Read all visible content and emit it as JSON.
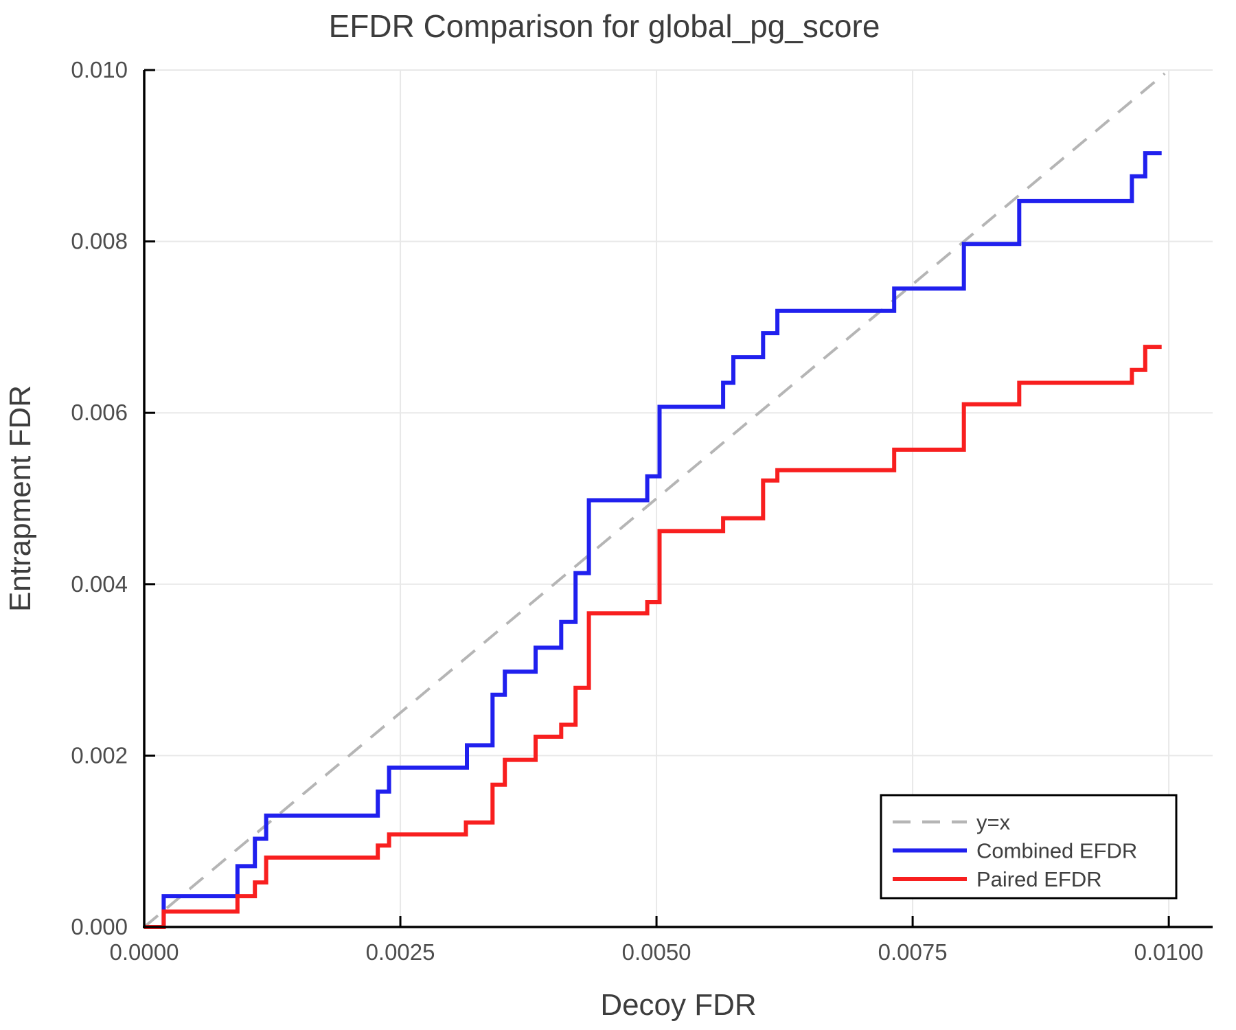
{
  "chart_data": {
    "type": "line",
    "title": "EFDR Comparison for global_pg_score",
    "xlabel": "Decoy FDR",
    "ylabel": "Entrapment FDR",
    "xlim": [
      0.0,
      0.010428
    ],
    "ylim": [
      0.0,
      0.01
    ],
    "grid": true,
    "legend_position": "bottom-right",
    "x_ticks": {
      "values": [
        0.0,
        0.0025,
        0.005,
        0.0075,
        0.01
      ],
      "labels": [
        "0.0000",
        "0.0025",
        "0.0050",
        "0.0075",
        "0.0100"
      ]
    },
    "y_ticks": {
      "values": [
        0.0,
        0.002,
        0.004,
        0.006,
        0.008,
        0.01
      ],
      "labels": [
        "0.000",
        "0.002",
        "0.004",
        "0.006",
        "0.008",
        "0.010"
      ]
    },
    "style": {
      "grid_color": "#e8e8e8",
      "spine_color": "#000000",
      "tick_color": "#000000",
      "tick_label_color": "#4d4d4d",
      "axis_label_color": "#3d3d3d",
      "title_color": "#3c3c3c",
      "legend_border_color": "#000000",
      "legend_bg_color": "#ffffff",
      "legend_text_color": "#3f3f3f"
    },
    "series": [
      {
        "name": "y=x",
        "color": "#b5b5b5",
        "dash": "26 17",
        "width": 4,
        "step": false,
        "points": [
          [
            0.0,
            0.0
          ],
          [
            0.00996,
            0.00996
          ]
        ]
      },
      {
        "name": "Combined EFDR",
        "color": "#2020ee",
        "dash": "",
        "width": 6,
        "step": true,
        "points": [
          [
            0.0,
            0.0
          ],
          [
            0.00019,
            0.00036
          ],
          [
            0.00091,
            0.00071
          ],
          [
            0.00108,
            0.00103
          ],
          [
            0.00119,
            0.0013
          ],
          [
            0.00228,
            0.00158
          ],
          [
            0.00239,
            0.00186
          ],
          [
            0.00315,
            0.00212
          ],
          [
            0.0034,
            0.00271
          ],
          [
            0.00352,
            0.00298
          ],
          [
            0.00382,
            0.00326
          ],
          [
            0.00407,
            0.00356
          ],
          [
            0.00421,
            0.00413
          ],
          [
            0.00434,
            0.00498
          ],
          [
            0.00491,
            0.00526
          ],
          [
            0.00503,
            0.00607
          ],
          [
            0.00565,
            0.00635
          ],
          [
            0.00575,
            0.00665
          ],
          [
            0.00604,
            0.00693
          ],
          [
            0.00618,
            0.00719
          ],
          [
            0.00732,
            0.00745
          ],
          [
            0.008,
            0.00797
          ],
          [
            0.00854,
            0.00847
          ],
          [
            0.00964,
            0.00876
          ],
          [
            0.00977,
            0.00903
          ],
          [
            0.00993,
            0.00903
          ]
        ]
      },
      {
        "name": "Paired EFDR",
        "color": "#f81f1f",
        "dash": "",
        "width": 6,
        "step": true,
        "points": [
          [
            0.0,
            0.0
          ],
          [
            0.00019,
            0.00018
          ],
          [
            0.00091,
            0.00036
          ],
          [
            0.00108,
            0.00052
          ],
          [
            0.00119,
            0.00081
          ],
          [
            0.00228,
            0.00095
          ],
          [
            0.00239,
            0.00108
          ],
          [
            0.00314,
            0.00122
          ],
          [
            0.0034,
            0.00166
          ],
          [
            0.00352,
            0.00195
          ],
          [
            0.00382,
            0.00222
          ],
          [
            0.00407,
            0.00236
          ],
          [
            0.00421,
            0.00279
          ],
          [
            0.00434,
            0.00366
          ],
          [
            0.00491,
            0.00379
          ],
          [
            0.00503,
            0.00462
          ],
          [
            0.00565,
            0.00477
          ],
          [
            0.00604,
            0.00521
          ],
          [
            0.00618,
            0.00533
          ],
          [
            0.00732,
            0.00557
          ],
          [
            0.008,
            0.0061
          ],
          [
            0.00854,
            0.00635
          ],
          [
            0.00964,
            0.0065
          ],
          [
            0.00977,
            0.00677
          ],
          [
            0.00993,
            0.00677
          ]
        ]
      }
    ]
  }
}
